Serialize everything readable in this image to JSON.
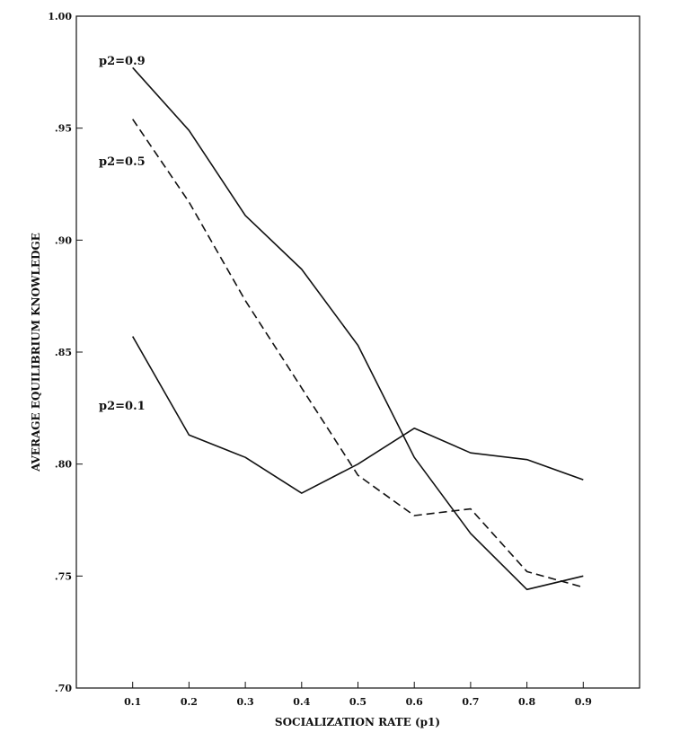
{
  "chart_data": {
    "type": "line",
    "title": "",
    "xlabel": "SOCIALIZATION RATE (p1)",
    "ylabel": "AVERAGE EQUILIBRIUM KNOWLEDGE",
    "x": [
      0.1,
      0.2,
      0.3,
      0.4,
      0.5,
      0.6,
      0.7,
      0.8,
      0.9
    ],
    "x_ticks": [
      "0.1",
      "0.2",
      "0.3",
      "0.4",
      "0.5",
      "0.6",
      "0.7",
      "0.8",
      "0.9"
    ],
    "xlim": [
      0.0,
      1.0
    ],
    "y_ticks": [
      {
        "value": 0.7,
        "label": ".70"
      },
      {
        "value": 0.75,
        "label": ".75"
      },
      {
        "value": 0.8,
        "label": ".80"
      },
      {
        "value": 0.85,
        "label": ".85"
      },
      {
        "value": 0.9,
        "label": ".90"
      },
      {
        "value": 0.95,
        "label": ".95"
      },
      {
        "value": 1.0,
        "label": "1.00"
      }
    ],
    "ylim": [
      0.7,
      1.0
    ],
    "grid": false,
    "legend": "inline labels",
    "series": [
      {
        "name": "p2=0.9",
        "style": "solid",
        "values": [
          0.977,
          0.949,
          0.911,
          0.887,
          0.853,
          0.803,
          0.769,
          0.744,
          0.75
        ]
      },
      {
        "name": "p2=0.5",
        "style": "dashed",
        "values": [
          0.954,
          0.917,
          0.873,
          0.834,
          0.795,
          0.777,
          0.78,
          0.752,
          0.745
        ]
      },
      {
        "name": "p2=0.1",
        "style": "solid",
        "values": [
          0.857,
          0.813,
          0.803,
          0.787,
          0.8,
          0.816,
          0.805,
          0.802,
          0.793
        ]
      }
    ],
    "line_color": "#111111"
  }
}
